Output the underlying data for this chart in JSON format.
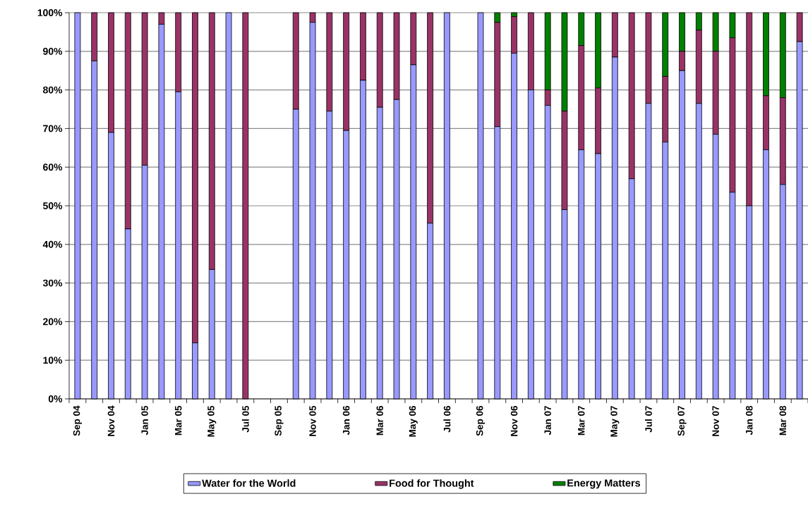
{
  "chart_data": {
    "type": "bar",
    "stacked": true,
    "categories": [
      "Sep 04",
      null,
      "Nov 04",
      null,
      "Jan 05",
      null,
      "Mar 05",
      null,
      "May 05",
      null,
      "Jul 05",
      null,
      "Sep 05",
      null,
      "Nov 05",
      null,
      "Jan 06",
      null,
      "Mar 06",
      null,
      "May 06",
      null,
      "Jul 06",
      null,
      "Sep 06",
      null,
      "Nov 06",
      null,
      "Jan 07",
      null,
      "Mar 07",
      null,
      "May 07",
      null,
      "Jul 07",
      null,
      "Sep 07",
      null,
      "Nov 07",
      null,
      "Jan 08",
      null,
      "Mar 08",
      null
    ],
    "series": [
      {
        "name": "Water for the World",
        "color": "#9999ff",
        "values": [
          100,
          87.5,
          69,
          44,
          60.5,
          97,
          79.5,
          14.5,
          33.5,
          100,
          0,
          null,
          null,
          75,
          97.5,
          74.5,
          69.5,
          82.5,
          75.5,
          77.5,
          86.5,
          45.5,
          100,
          null,
          100,
          70.5,
          89.5,
          80,
          76,
          49,
          64.5,
          63.5,
          88.5,
          57,
          76.5,
          66.5,
          85,
          76.5,
          68.5,
          53.5,
          50,
          64.5,
          55.5,
          92.5
        ]
      },
      {
        "name": "Food for Thought",
        "color": "#993366",
        "values": [
          0,
          12.5,
          31,
          56,
          39.5,
          3,
          20.5,
          85.5,
          66.5,
          0,
          100,
          null,
          null,
          25,
          2.5,
          25.5,
          30.5,
          17.5,
          24.5,
          22.5,
          13.5,
          54.5,
          0,
          null,
          0,
          27,
          9.5,
          20,
          4,
          25.5,
          27,
          17,
          11.5,
          43,
          23.5,
          17,
          5,
          19,
          21.5,
          40,
          50,
          14,
          22.5,
          7.5
        ]
      },
      {
        "name": "Energy Matters",
        "color": "#008000",
        "values": [
          0,
          0,
          0,
          0,
          0,
          0,
          0,
          0,
          0,
          0,
          0,
          null,
          null,
          0,
          0,
          0,
          0,
          0,
          0,
          0,
          0,
          0,
          0,
          null,
          0,
          2.5,
          1,
          0,
          20,
          25.5,
          8.5,
          19.5,
          0,
          0,
          0,
          16.5,
          10,
          4.5,
          10,
          6.5,
          0,
          21.5,
          22,
          0
        ]
      }
    ],
    "ylim": [
      0,
      100
    ],
    "yticks": [
      {
        "value": 0,
        "label": "0%"
      },
      {
        "value": 10,
        "label": "10%"
      },
      {
        "value": 20,
        "label": "20%"
      },
      {
        "value": 30,
        "label": "30%"
      },
      {
        "value": 40,
        "label": "40%"
      },
      {
        "value": 50,
        "label": "50%"
      },
      {
        "value": 60,
        "label": "60%"
      },
      {
        "value": 70,
        "label": "70%"
      },
      {
        "value": 80,
        "label": "80%"
      },
      {
        "value": 90,
        "label": "90%"
      },
      {
        "value": 100,
        "label": "100%"
      }
    ],
    "grid": "y",
    "legend": "bottom"
  }
}
